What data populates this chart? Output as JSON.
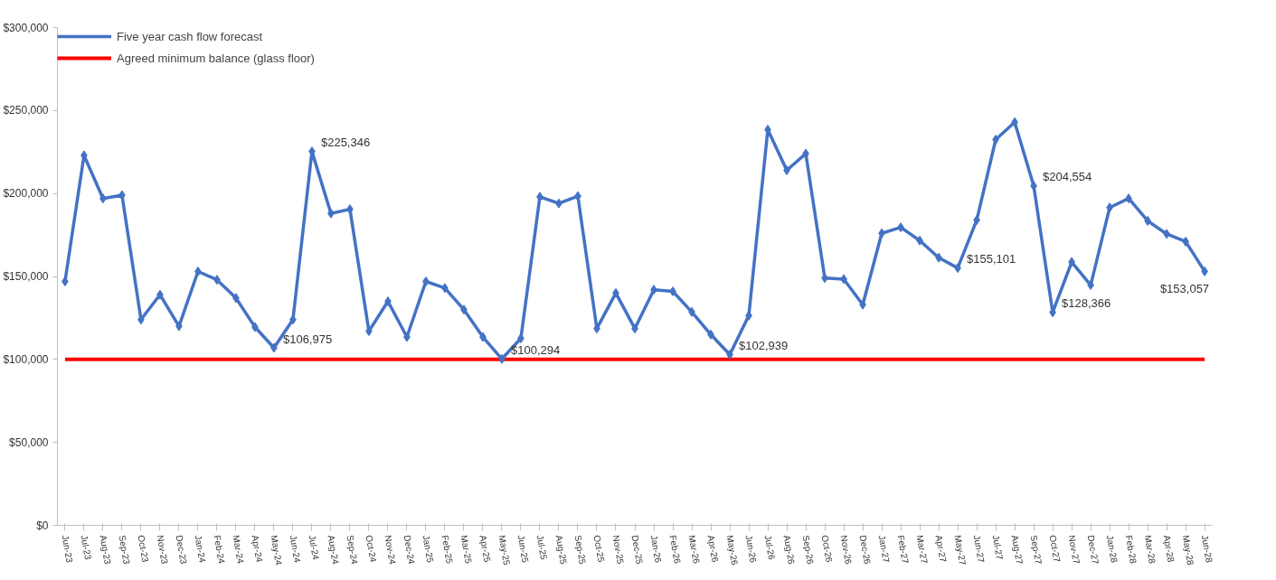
{
  "chart_data": {
    "type": "line",
    "categories": [
      "Jun-23",
      "Jul-23",
      "Aug-23",
      "Sep-23",
      "Oct-23",
      "Nov-23",
      "Dec-23",
      "Jan-24",
      "Feb-24",
      "Mar-24",
      "Apr-24",
      "May-24",
      "Jun-24",
      "Jul-24",
      "Aug-24",
      "Sep-24",
      "Oct-24",
      "Nov-24",
      "Dec-24",
      "Jan-25",
      "Feb-25",
      "Mar-25",
      "Apr-25",
      "May-25",
      "Jun-25",
      "Jul-25",
      "Aug-25",
      "Sep-25",
      "Oct-25",
      "Nov-25",
      "Dec-25",
      "Jan-26",
      "Feb-26",
      "Mar-26",
      "Apr-26",
      "May-26",
      "Jun-26",
      "Jul-26",
      "Aug-26",
      "Sep-26",
      "Oct-26",
      "Nov-26",
      "Dec-26",
      "Jan-27",
      "Feb-27",
      "Mar-27",
      "Apr-27",
      "May-27",
      "Jun-27",
      "Jul-27",
      "Aug-27",
      "Sep-27",
      "Oct-27",
      "Nov-27",
      "Dec-27",
      "Jan-28",
      "Feb-28",
      "Mar-28",
      "Apr-28",
      "May-28",
      "Jun-28"
    ],
    "series": [
      {
        "name": "Five year cash flow forecast",
        "color": "#4472c4",
        "values": [
          147000,
          223000,
          197000,
          199000,
          124000,
          139000,
          120000,
          153000,
          148000,
          137000,
          119500,
          106975,
          124000,
          225346,
          188000,
          190500,
          117000,
          135000,
          113500,
          147000,
          143000,
          130000,
          113500,
          100294,
          112700,
          198000,
          194000,
          198400,
          118600,
          140000,
          118600,
          142000,
          141000,
          128600,
          115000,
          102939,
          126400,
          238500,
          214000,
          224000,
          149000,
          148400,
          133000,
          176000,
          179600,
          171600,
          161300,
          155101,
          184000,
          232500,
          243000,
          204554,
          128366,
          158700,
          144800,
          191500,
          197000,
          183500,
          175600,
          171000,
          153057
        ],
        "value_labels": [
          null,
          null,
          null,
          null,
          null,
          null,
          null,
          null,
          null,
          null,
          null,
          "$106,975",
          null,
          "$225,346",
          null,
          null,
          null,
          null,
          null,
          null,
          null,
          null,
          null,
          "$100,294",
          null,
          null,
          null,
          null,
          null,
          null,
          null,
          null,
          null,
          null,
          null,
          "$102,939",
          null,
          null,
          null,
          null,
          null,
          null,
          null,
          null,
          null,
          null,
          null,
          "$155,101",
          null,
          null,
          null,
          "$204,554",
          "$128,366",
          null,
          null,
          null,
          null,
          null,
          null,
          null,
          "$153,057"
        ]
      }
    ],
    "ref_lines": [
      {
        "axis": "y",
        "value": 100000,
        "label": "Agreed minimum balance (glass floor)",
        "color": "#ff0000"
      }
    ],
    "ylim": [
      0,
      300000
    ],
    "yticks": [
      {
        "value": 0,
        "label": "$0"
      },
      {
        "value": 50000,
        "label": "$50,000"
      },
      {
        "value": 100000,
        "label": "$100,000"
      },
      {
        "value": 150000,
        "label": "$150,000"
      },
      {
        "value": 200000,
        "label": "$200,000"
      },
      {
        "value": 250000,
        "label": "$250,000"
      },
      {
        "value": 300000,
        "label": "$300,000"
      }
    ],
    "grid": false,
    "legend": "top left",
    "marker": "diamond",
    "line_style": "solid"
  }
}
